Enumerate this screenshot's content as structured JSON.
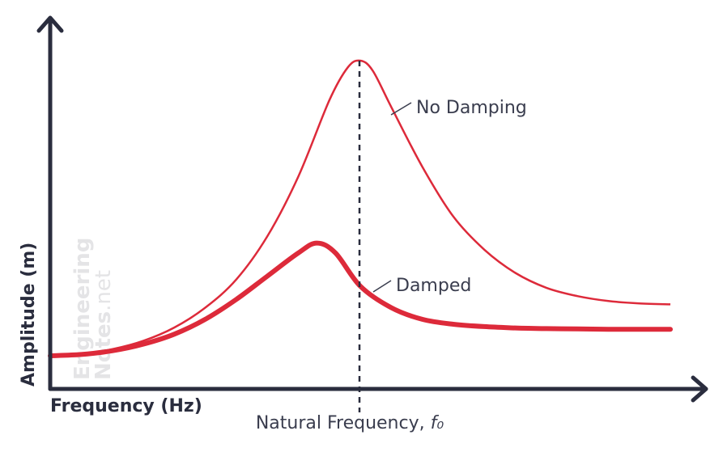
{
  "chart_data": {
    "type": "line",
    "title": "",
    "xlabel": "Frequency (Hz)",
    "ylabel": "Amplitude (m)",
    "xlim": [
      0,
      10
    ],
    "ylim": [
      0,
      10
    ],
    "grid": false,
    "natural_frequency": {
      "x": 5,
      "label": "Natural Frequency, ",
      "symbol": "f₀"
    },
    "series": [
      {
        "name": "No Damping",
        "label": "No Damping",
        "style": "thin",
        "x": [
          0,
          0.5,
          1,
          1.5,
          2,
          2.5,
          3,
          3.5,
          4,
          4.5,
          4.8,
          5,
          5.2,
          5.5,
          6,
          6.5,
          7,
          7.5,
          8,
          8.5,
          9,
          9.5,
          10
        ],
        "values": [
          0.0,
          0.05,
          0.2,
          0.45,
          0.85,
          1.45,
          2.3,
          3.6,
          5.4,
          7.7,
          8.7,
          8.9,
          8.6,
          7.5,
          5.7,
          4.2,
          3.2,
          2.5,
          2.05,
          1.8,
          1.65,
          1.58,
          1.55
        ]
      },
      {
        "name": "Damped",
        "label": "Damped",
        "style": "thick",
        "x": [
          0,
          0.5,
          1,
          1.5,
          2,
          2.5,
          3,
          3.5,
          4,
          4.3,
          4.6,
          5,
          5.5,
          6,
          6.5,
          7,
          7.5,
          8,
          8.5,
          9,
          9.5,
          10
        ],
        "values": [
          0.0,
          0.04,
          0.15,
          0.35,
          0.65,
          1.1,
          1.7,
          2.4,
          3.1,
          3.4,
          3.1,
          2.1,
          1.45,
          1.1,
          0.95,
          0.88,
          0.84,
          0.82,
          0.81,
          0.8,
          0.8,
          0.8
        ]
      }
    ]
  },
  "watermark": {
    "line1": "Engineering",
    "line2_bold": "Notes",
    "line2_light": ".net"
  },
  "colors": {
    "curve": "#dd2a3a",
    "axis": "#2a2d3e"
  }
}
